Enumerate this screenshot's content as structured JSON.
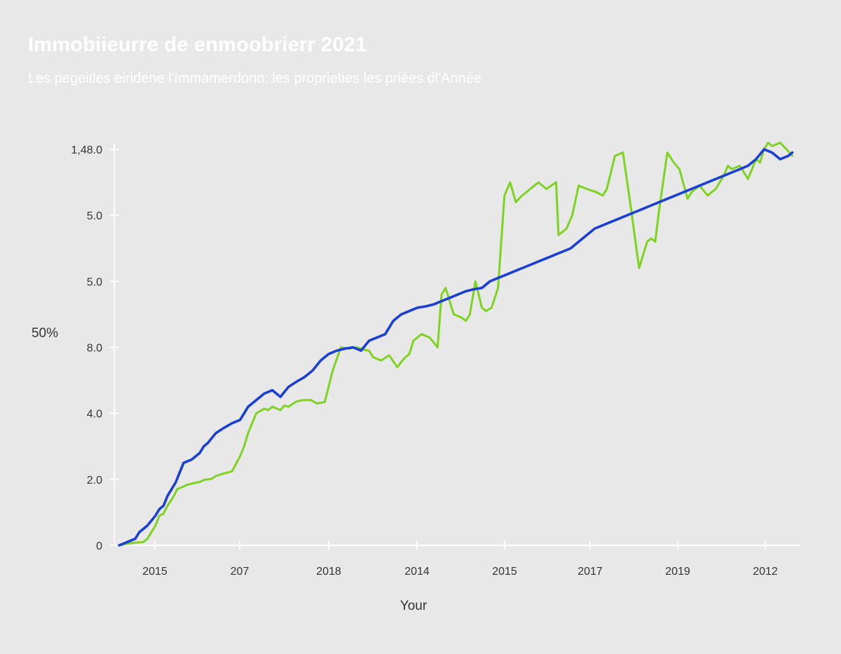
{
  "chart_data": {
    "type": "line",
    "title": "Immobiieurre de enmoobrierr 2021",
    "subtitle": "Les pegeitles eiridene l'Immamerdono: les proprieties les priées dl'Année",
    "xlabel": "Your",
    "ylabel": "50%",
    "x_tick_labels": [
      "2015",
      "207",
      "2018",
      "2014",
      "2015",
      "2017",
      "2019",
      "2012"
    ],
    "y_tick_labels": [
      "0",
      "2.0",
      "4.0",
      "8.0",
      "5.0",
      "5.0",
      "1,48.0"
    ],
    "ylim": [
      0,
      6
    ],
    "grid": false,
    "legend": "none",
    "series": [
      {
        "color": "#7ed321",
        "x": [
          0.0,
          0.12,
          0.2,
          0.3,
          0.35,
          0.45,
          0.5,
          0.55,
          0.6,
          0.68,
          0.72,
          0.85,
          0.95,
          1.0,
          1.05,
          1.15,
          1.2,
          1.3,
          1.4,
          1.5,
          1.55,
          1.6,
          1.7,
          1.8,
          1.85,
          1.9,
          2.0,
          2.05,
          2.1,
          2.2,
          2.28,
          2.38,
          2.45,
          2.55,
          2.65,
          2.75,
          2.85,
          2.95,
          3.05,
          3.1,
          3.15,
          3.25,
          3.35,
          3.45,
          3.5,
          3.55,
          3.6,
          3.65,
          3.75,
          3.85,
          3.95,
          4.0,
          4.05,
          4.15,
          4.25,
          4.3,
          4.35,
          4.42,
          4.5,
          4.55,
          4.62,
          4.7,
          4.78,
          4.85,
          4.92,
          5.0,
          5.1,
          5.2,
          5.3,
          5.42,
          5.45,
          5.55,
          5.62,
          5.7,
          5.8,
          5.92,
          6.0,
          6.05,
          6.15,
          6.25,
          6.35,
          6.45,
          6.55,
          6.6,
          6.65,
          6.7,
          6.8,
          6.88,
          6.95,
          7.05,
          7.1,
          7.2,
          7.3,
          7.4,
          7.5,
          7.55,
          7.6,
          7.7,
          7.8,
          7.85,
          7.9,
          7.95,
          8.0,
          8.05,
          8.1,
          8.2,
          8.28,
          8.35
        ],
        "values": [
          0.0,
          0.03,
          0.04,
          0.05,
          0.1,
          0.3,
          0.45,
          0.48,
          0.6,
          0.75,
          0.85,
          0.92,
          0.95,
          0.96,
          0.99,
          1.01,
          1.05,
          1.09,
          1.12,
          1.35,
          1.5,
          1.7,
          2.0,
          2.07,
          2.05,
          2.1,
          2.05,
          2.12,
          2.1,
          2.18,
          2.2,
          2.2,
          2.15,
          2.17,
          2.65,
          3.0,
          2.98,
          3.0,
          2.96,
          2.95,
          2.85,
          2.8,
          2.88,
          2.7,
          2.78,
          2.85,
          2.9,
          3.1,
          3.2,
          3.15,
          3.0,
          3.8,
          3.9,
          3.5,
          3.45,
          3.4,
          3.5,
          4.0,
          3.6,
          3.55,
          3.6,
          3.9,
          5.3,
          5.5,
          5.2,
          5.3,
          5.4,
          5.5,
          5.4,
          5.5,
          4.7,
          4.8,
          5.0,
          5.45,
          5.4,
          5.35,
          5.3,
          5.4,
          5.9,
          5.95,
          5.1,
          4.2,
          4.6,
          4.65,
          4.6,
          5.1,
          5.95,
          5.8,
          5.7,
          5.25,
          5.35,
          5.45,
          5.3,
          5.4,
          5.6,
          5.75,
          5.7,
          5.75,
          5.55,
          5.7,
          5.85,
          5.8,
          6.0,
          6.1,
          6.05,
          6.1,
          6.0,
          5.9
        ]
      },
      {
        "color": "#1a3fd6",
        "x": [
          0.0,
          0.1,
          0.2,
          0.25,
          0.35,
          0.45,
          0.5,
          0.55,
          0.6,
          0.7,
          0.8,
          0.9,
          1.0,
          1.05,
          1.1,
          1.2,
          1.3,
          1.4,
          1.5,
          1.55,
          1.6,
          1.7,
          1.8,
          1.9,
          2.0,
          2.1,
          2.2,
          2.3,
          2.4,
          2.5,
          2.6,
          2.7,
          2.8,
          2.9,
          3.0,
          3.1,
          3.2,
          3.3,
          3.4,
          3.5,
          3.6,
          3.7,
          3.8,
          3.9,
          4.0,
          4.1,
          4.2,
          4.3,
          4.4,
          4.5,
          4.6,
          4.7,
          4.8,
          4.9,
          5.0,
          5.1,
          5.2,
          5.3,
          5.4,
          5.5,
          5.6,
          5.7,
          5.8,
          5.9,
          6.0,
          6.1,
          6.2,
          6.3,
          6.4,
          6.5,
          6.6,
          6.7,
          6.8,
          6.9,
          7.0,
          7.1,
          7.2,
          7.3,
          7.4,
          7.5,
          7.6,
          7.7,
          7.8,
          7.9,
          8.0,
          8.1,
          8.2,
          8.3,
          8.35
        ],
        "values": [
          0.0,
          0.05,
          0.1,
          0.2,
          0.3,
          0.45,
          0.55,
          0.6,
          0.75,
          0.95,
          1.25,
          1.3,
          1.4,
          1.5,
          1.55,
          1.7,
          1.78,
          1.85,
          1.9,
          2.0,
          2.1,
          2.2,
          2.3,
          2.35,
          2.25,
          2.4,
          2.48,
          2.55,
          2.65,
          2.8,
          2.9,
          2.95,
          2.98,
          3.0,
          2.95,
          3.1,
          3.15,
          3.2,
          3.4,
          3.5,
          3.55,
          3.6,
          3.62,
          3.65,
          3.7,
          3.75,
          3.8,
          3.85,
          3.88,
          3.9,
          4.0,
          4.05,
          4.1,
          4.15,
          4.2,
          4.25,
          4.3,
          4.35,
          4.4,
          4.45,
          4.5,
          4.6,
          4.7,
          4.8,
          4.85,
          4.9,
          4.95,
          5.0,
          5.05,
          5.1,
          5.15,
          5.2,
          5.25,
          5.3,
          5.35,
          5.4,
          5.45,
          5.5,
          5.55,
          5.6,
          5.65,
          5.7,
          5.75,
          5.85,
          6.0,
          5.95,
          5.85,
          5.9,
          5.95
        ]
      }
    ]
  }
}
